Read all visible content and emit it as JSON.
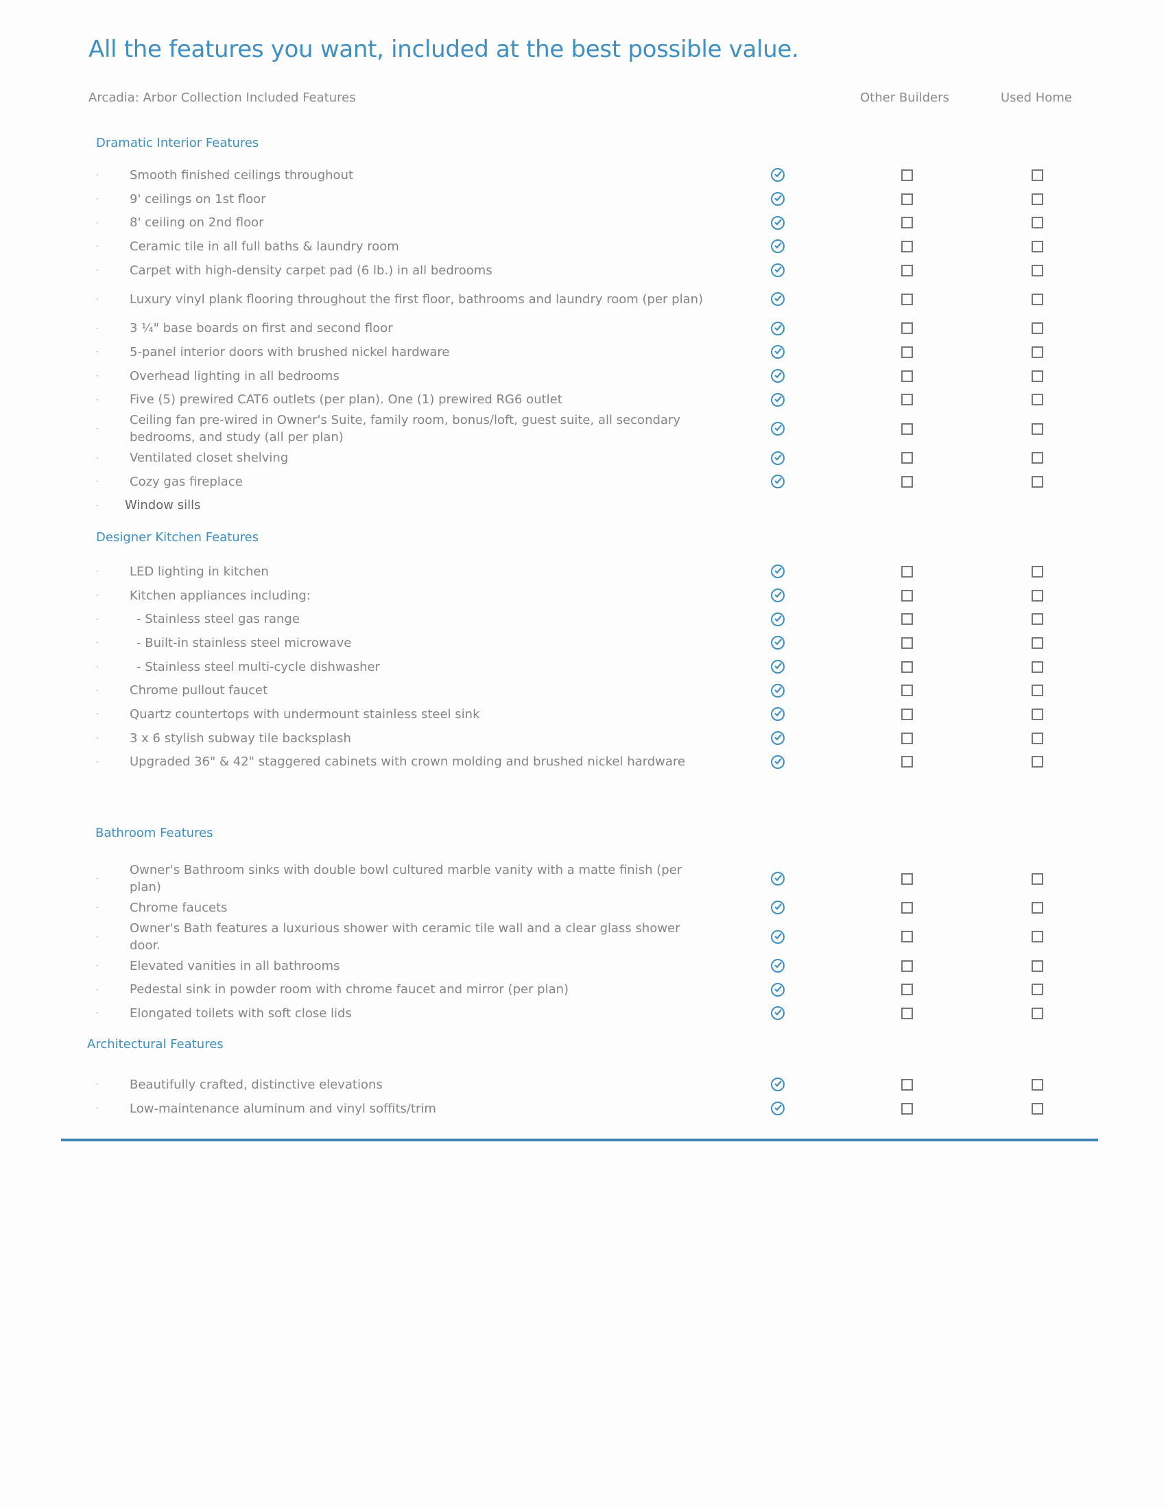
{
  "title": "All the features you want, included at the best possible value.",
  "header": {
    "collection": "Arcadia: Arbor Collection Included Features",
    "col_other": "Other Builders",
    "col_used": "Used Home"
  },
  "colors": {
    "accent": "#3d8fc4",
    "rule": "#3d84b8"
  },
  "icons": {
    "included": "circle-check-icon",
    "not_included": "empty-checkbox-icon"
  },
  "sections": [
    {
      "title": "Dramatic Interior Features",
      "items": [
        {
          "text": "Smooth finished ceilings throughout",
          "included": true
        },
        {
          "text": "9' ceilings on 1st floor",
          "included": true
        },
        {
          "text": "8' ceiling on 2nd floor",
          "included": true
        },
        {
          "text": "Ceramic tile in all full baths & laundry room",
          "included": true
        },
        {
          "text": "Carpet with high-density carpet pad (6 lb.) in all bedrooms",
          "included": true
        },
        {
          "text": "Luxury vinyl plank flooring throughout the first floor, bathrooms and laundry room (per plan)",
          "included": true,
          "two": true
        },
        {
          "text": "3 ¼\" base boards on first and second floor",
          "included": true
        },
        {
          "text": "5-panel interior doors with brushed nickel hardware",
          "included": true
        },
        {
          "text": "Overhead lighting in all bedrooms",
          "included": true
        },
        {
          "text": "Five (5) prewired CAT6 outlets (per plan). One (1) prewired RG6 outlet",
          "included": true
        },
        {
          "text": "Ceiling fan pre-wired in Owner's Suite, family room, bonus/loft, guest suite, all secondary bedrooms, and study (all per plan)",
          "included": true,
          "two": true
        },
        {
          "text": "Ventilated closet shelving",
          "included": true
        },
        {
          "text": "Cozy gas fireplace",
          "included": true
        },
        {
          "text": "Window sills",
          "included": null,
          "plain": true
        }
      ]
    },
    {
      "title": "Designer Kitchen Features",
      "items": [
        {
          "text": "LED lighting in kitchen",
          "included": true
        },
        {
          "text": "Kitchen appliances including:",
          "included": true
        },
        {
          "text": "- Stainless steel gas range",
          "included": true,
          "sub": true
        },
        {
          "text": "- Built-in stainless steel microwave",
          "included": true,
          "sub": true
        },
        {
          "text": "- Stainless steel multi-cycle dishwasher",
          "included": true,
          "sub": true
        },
        {
          "text": "Chrome pullout faucet",
          "included": true
        },
        {
          "text": "Quartz countertops with undermount stainless steel sink",
          "included": true
        },
        {
          "text": "3 x 6  stylish subway tile backsplash",
          "included": true
        },
        {
          "text": "Upgraded 36\" & 42\" staggered cabinets with crown molding and brushed nickel hardware",
          "included": true
        }
      ]
    },
    {
      "title": "Bathroom  Features",
      "items": [
        {
          "text": "Owner's Bathroom sinks with double bowl cultured marble vanity with a matte finish (per plan)",
          "included": true,
          "two": true
        },
        {
          "text": "Chrome faucets",
          "included": true
        },
        {
          "text": "Owner's Bath features a luxurious shower with ceramic tile wall and a clear glass shower door.",
          "included": true,
          "two": true
        },
        {
          "text": "Elevated vanities in all bathrooms",
          "included": true
        },
        {
          "text": "Pedestal sink in powder room with chrome faucet and mirror (per plan)",
          "included": true
        },
        {
          "text": "Elongated toilets with soft close lids",
          "included": true
        }
      ]
    },
    {
      "title": "Architectural Features",
      "items": [
        {
          "text": "Beautifully crafted, distinctive elevations",
          "included": true
        },
        {
          "text": "Low-maintenance aluminum and vinyl soffits/trim",
          "included": true
        }
      ]
    }
  ]
}
